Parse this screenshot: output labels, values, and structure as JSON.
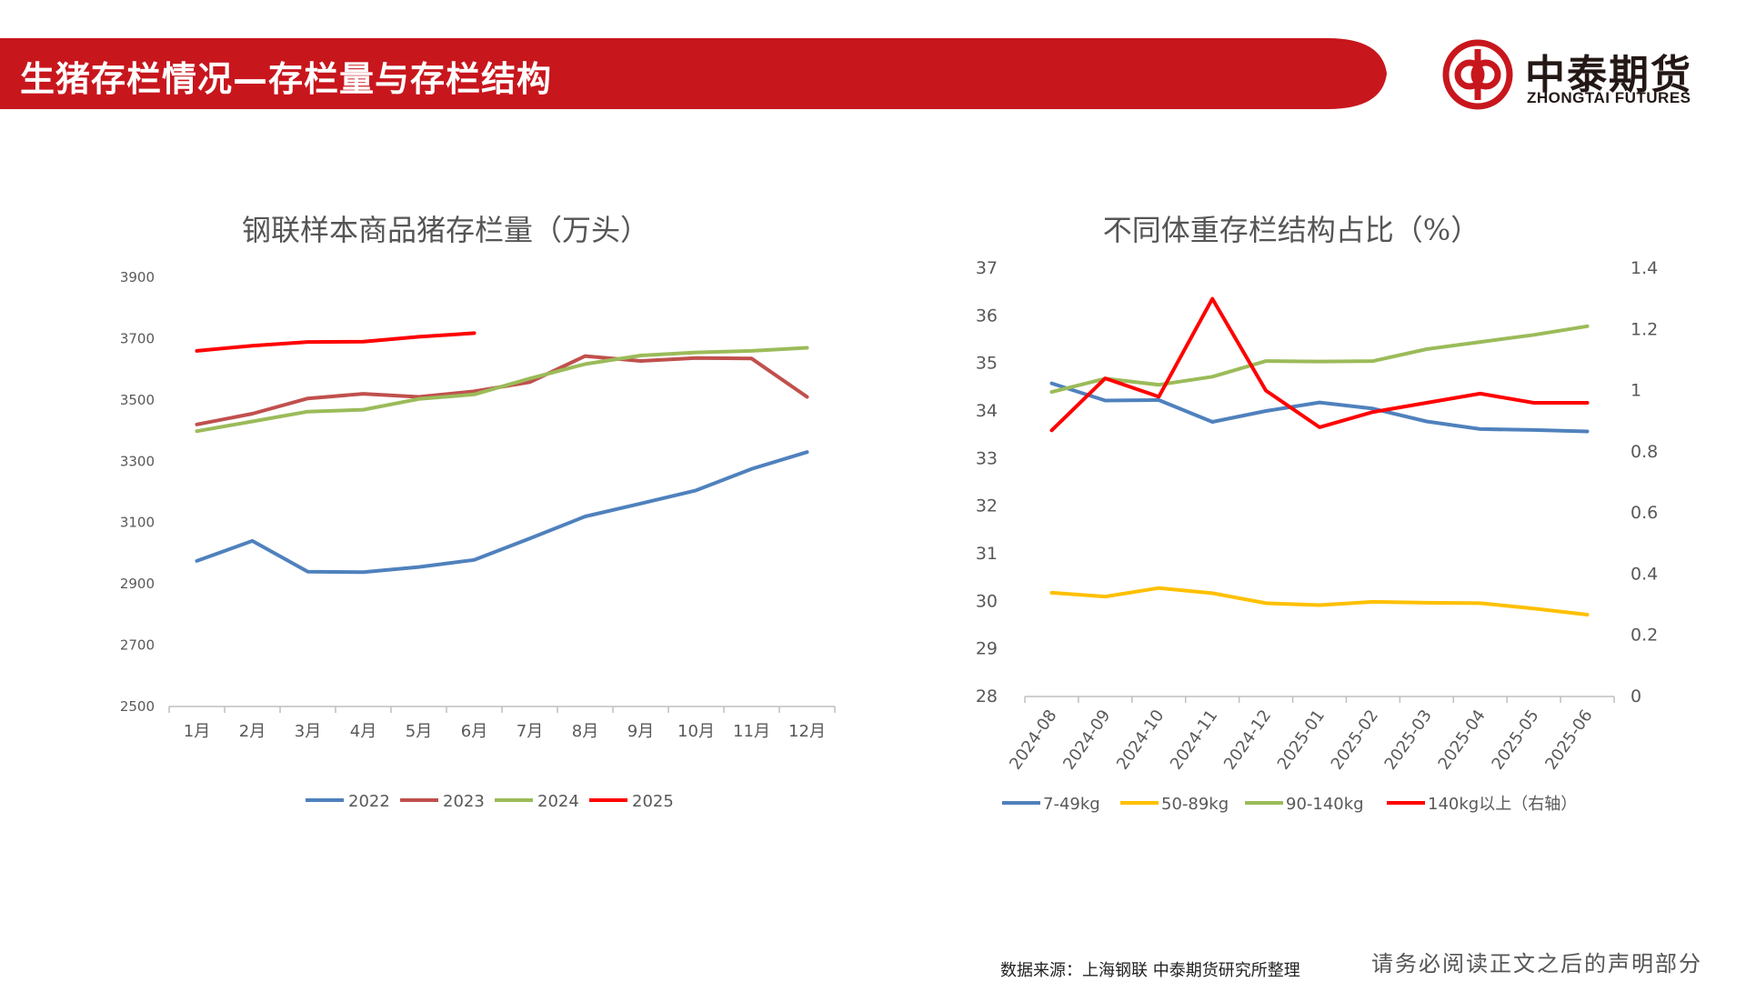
{
  "header": {
    "title": "生猪存栏情况—存栏量与存栏结构",
    "bar_color": "#C8161D"
  },
  "logo": {
    "name_cn": "中泰期货",
    "name_en": "ZHONGTAI FUTURES",
    "color": "#C8161D"
  },
  "chart_data": [
    {
      "type": "line",
      "title": "钢联样本商品猪存栏量（万头）",
      "categories": [
        "1月",
        "2月",
        "3月",
        "4月",
        "5月",
        "6月",
        "7月",
        "8月",
        "9月",
        "10月",
        "11月",
        "12月"
      ],
      "ylim": [
        2500,
        3900
      ],
      "yticks": [
        2500,
        2700,
        2900,
        3100,
        3300,
        3500,
        3700,
        3900
      ],
      "grid": false,
      "legend_position": "bottom",
      "series": [
        {
          "name": "2022",
          "color": "#4F81BD",
          "values": [
            2975,
            3040,
            2940,
            2938,
            2955,
            2978,
            3048,
            3120,
            3162,
            3205,
            3275,
            3330
          ]
        },
        {
          "name": "2023",
          "color": "#C0504D",
          "values": [
            3420,
            3455,
            3505,
            3520,
            3510,
            3528,
            3558,
            3643,
            3627,
            3637,
            3635,
            3510
          ]
        },
        {
          "name": "2024",
          "color": "#9BBB59",
          "values": [
            3398,
            3430,
            3462,
            3468,
            3503,
            3518,
            3570,
            3617,
            3645,
            3655,
            3660,
            3670
          ]
        },
        {
          "name": "2025",
          "color": "#FF0000",
          "values": [
            3660,
            3677,
            3689,
            3690,
            3706,
            3718,
            null,
            null,
            null,
            null,
            null,
            null
          ]
        }
      ]
    },
    {
      "type": "line",
      "title": "不同体重存栏结构占比（%）",
      "categories": [
        "2024-08",
        "2024-09",
        "2024-10",
        "2024-11",
        "2024-12",
        "2025-01",
        "2025-02",
        "2025-03",
        "2025-04",
        "2025-05",
        "2025-06"
      ],
      "ylim": [
        28,
        37
      ],
      "yticks": [
        28,
        29,
        30,
        31,
        32,
        33,
        34,
        35,
        36,
        37
      ],
      "y2lim": [
        0,
        1.4
      ],
      "y2ticks": [
        "0",
        "0.2",
        "0.4",
        "0.6",
        "0.8",
        "1",
        "1.2",
        "1.4"
      ],
      "grid": false,
      "legend_position": "bottom",
      "series": [
        {
          "name": "7-49kg",
          "color": "#4F81BD",
          "axis": "left",
          "values": [
            34.58,
            34.22,
            34.23,
            33.77,
            34.0,
            34.18,
            34.05,
            33.78,
            33.62,
            33.6,
            33.57
          ]
        },
        {
          "name": "50-89kg",
          "color": "#FFC000",
          "axis": "left",
          "values": [
            30.18,
            30.1,
            30.28,
            30.17,
            29.96,
            29.92,
            29.99,
            29.97,
            29.96,
            29.85,
            29.72
          ]
        },
        {
          "name": "90-140kg",
          "color": "#9BBB59",
          "axis": "left",
          "values": [
            34.4,
            34.68,
            34.55,
            34.72,
            35.05,
            35.04,
            35.05,
            35.3,
            35.45,
            35.6,
            35.78
          ]
        },
        {
          "name": "140kg以上（右轴）",
          "color": "#FF0000",
          "axis": "right",
          "values": [
            0.87,
            1.04,
            0.98,
            1.3,
            1.0,
            0.88,
            0.93,
            0.96,
            0.99,
            0.96,
            0.96
          ]
        }
      ]
    }
  ],
  "footer": {
    "source": "数据来源：上海钢联   中泰期货研究所整理",
    "disclaimer": "请务必阅读正文之后的声明部分"
  }
}
